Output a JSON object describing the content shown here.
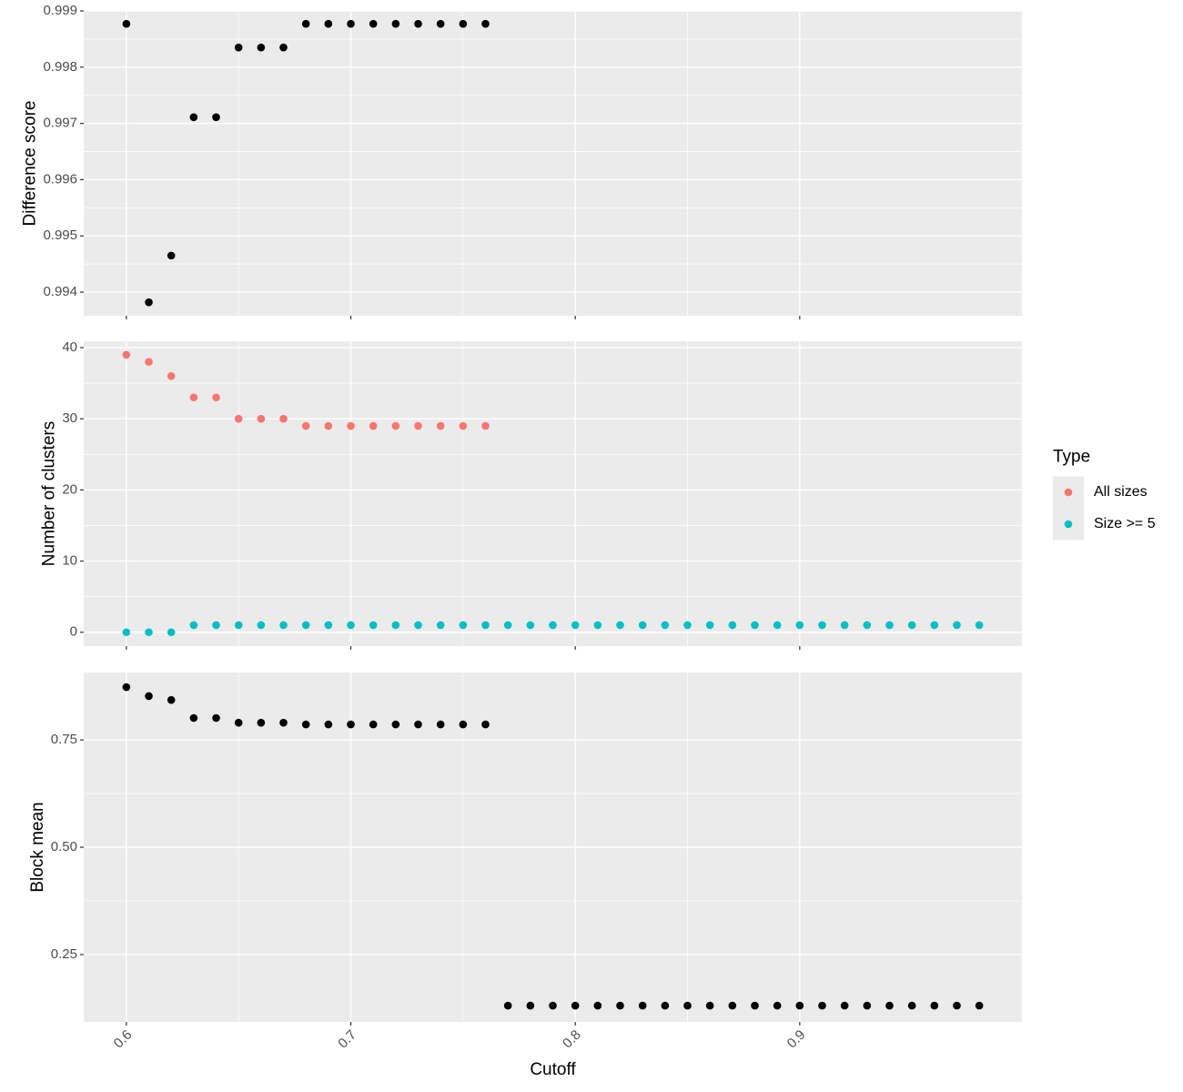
{
  "chart_data": [
    {
      "type": "scatter",
      "ylabel": "Difference score",
      "x": [
        0.6,
        0.61,
        0.62,
        0.63,
        0.64,
        0.65,
        0.66,
        0.67,
        0.68,
        0.69,
        0.7,
        0.71,
        0.72,
        0.73,
        0.74,
        0.75,
        0.76
      ],
      "values": [
        0.99877,
        0.99382,
        0.99465,
        0.99711,
        0.99711,
        0.99835,
        0.99835,
        0.99835,
        0.99877,
        0.99877,
        0.99877,
        0.99877,
        0.99877,
        0.99877,
        0.99877,
        0.99877,
        0.99877
      ],
      "color": "#000000",
      "xlim": [
        0.581,
        0.999
      ],
      "xticks": [
        0.6,
        0.7,
        0.8,
        0.9
      ],
      "ylim": [
        0.99358,
        0.999
      ],
      "yticks": [
        0.994,
        0.995,
        0.996,
        0.997,
        0.998,
        0.999
      ],
      "grid": true,
      "x_tick_labels": false
    },
    {
      "type": "scatter",
      "ylabel": "Number of clusters",
      "legend_title": "Type",
      "legend": "right",
      "series": [
        {
          "name": "All sizes",
          "color": "#F8766D",
          "x": [
            0.6,
            0.61,
            0.62,
            0.63,
            0.64,
            0.65,
            0.66,
            0.67,
            0.68,
            0.69,
            0.7,
            0.71,
            0.72,
            0.73,
            0.74,
            0.75,
            0.76
          ],
          "values": [
            39,
            38,
            36,
            33,
            33,
            30,
            30,
            30,
            29,
            29,
            29,
            29,
            29,
            29,
            29,
            29,
            29
          ]
        },
        {
          "name": "Size >= 5",
          "color": "#00BFC4",
          "x": [
            0.6,
            0.61,
            0.62,
            0.63,
            0.64,
            0.65,
            0.66,
            0.67,
            0.68,
            0.69,
            0.7,
            0.71,
            0.72,
            0.73,
            0.74,
            0.75,
            0.76,
            0.77,
            0.78,
            0.79,
            0.8,
            0.81,
            0.82,
            0.83,
            0.84,
            0.85,
            0.86,
            0.87,
            0.88,
            0.89,
            0.9,
            0.91,
            0.92,
            0.93,
            0.94,
            0.95,
            0.96,
            0.97,
            0.98
          ],
          "values": [
            0,
            0,
            0,
            1,
            1,
            1,
            1,
            1,
            1,
            1,
            1,
            1,
            1,
            1,
            1,
            1,
            1,
            1,
            1,
            1,
            1,
            1,
            1,
            1,
            1,
            1,
            1,
            1,
            1,
            1,
            1,
            1,
            1,
            1,
            1,
            1,
            1,
            1,
            1
          ]
        }
      ],
      "xlim": [
        0.581,
        0.999
      ],
      "xticks": [
        0.6,
        0.7,
        0.8,
        0.9
      ],
      "ylim": [
        -1.95,
        40.9
      ],
      "yticks": [
        0,
        10,
        20,
        30,
        40
      ],
      "grid": true,
      "x_tick_labels": false
    },
    {
      "type": "scatter",
      "ylabel": "Block mean",
      "xlabel": "Cutoff",
      "x": [
        0.6,
        0.61,
        0.62,
        0.63,
        0.64,
        0.65,
        0.66,
        0.67,
        0.68,
        0.69,
        0.7,
        0.71,
        0.72,
        0.73,
        0.74,
        0.75,
        0.76,
        0.77,
        0.78,
        0.79,
        0.8,
        0.81,
        0.82,
        0.83,
        0.84,
        0.85,
        0.86,
        0.87,
        0.88,
        0.89,
        0.9,
        0.91,
        0.92,
        0.93,
        0.94,
        0.95,
        0.96,
        0.97,
        0.98
      ],
      "values": [
        0.873,
        0.852,
        0.843,
        0.801,
        0.801,
        0.79,
        0.79,
        0.79,
        0.786,
        0.786,
        0.786,
        0.786,
        0.786,
        0.786,
        0.786,
        0.786,
        0.786,
        0.131,
        0.131,
        0.131,
        0.131,
        0.131,
        0.131,
        0.131,
        0.131,
        0.131,
        0.131,
        0.131,
        0.131,
        0.131,
        0.131,
        0.131,
        0.131,
        0.131,
        0.131,
        0.131,
        0.131,
        0.131,
        0.131
      ],
      "color": "#000000",
      "xlim": [
        0.581,
        0.999
      ],
      "xticks": [
        0.6,
        0.7,
        0.8,
        0.9
      ],
      "ylim": [
        0.093,
        0.907
      ],
      "yticks": [
        0.25,
        {
          "value": 0.5,
          "label": "0.50"
        },
        0.75
      ],
      "grid": true,
      "x_tick_labels": true
    }
  ]
}
